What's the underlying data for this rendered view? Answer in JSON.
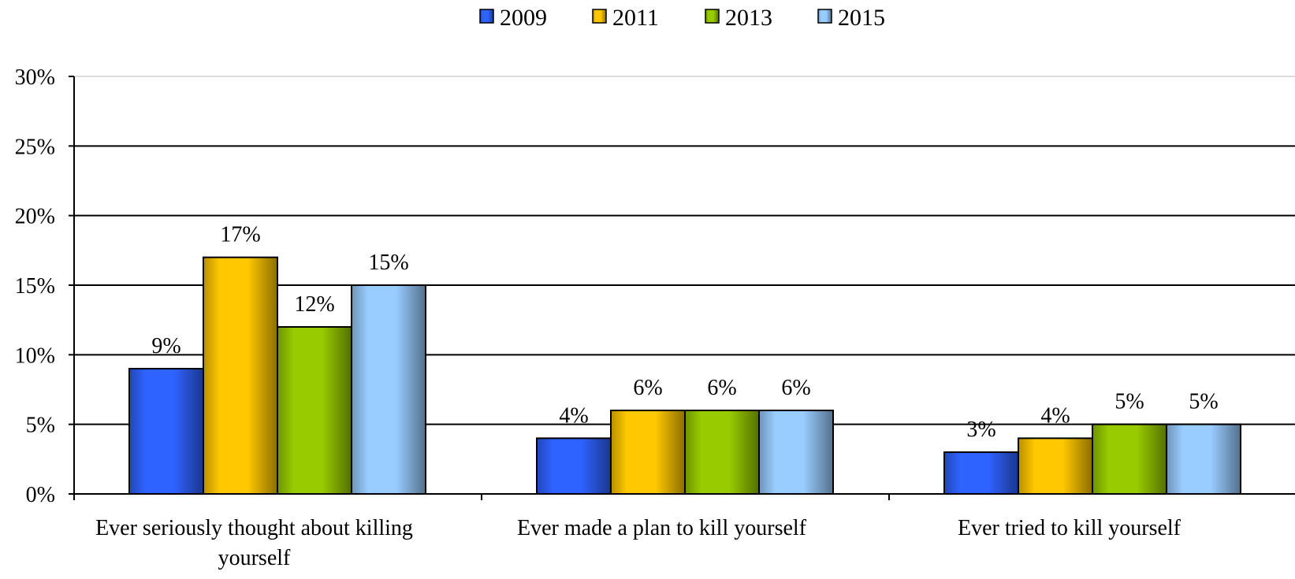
{
  "chart_data": {
    "type": "bar",
    "title": "",
    "xlabel": "",
    "ylabel": "",
    "categories": [
      [
        "Ever seriously thought about killing",
        "yourself"
      ],
      [
        "Ever made a plan to kill yourself"
      ],
      [
        "Ever tried to kill yourself"
      ]
    ],
    "series": [
      {
        "name": "2009",
        "values": [
          9,
          4,
          3
        ],
        "color": "#2f63ff",
        "labels": [
          "9%",
          "4%",
          "3%"
        ]
      },
      {
        "name": "2011",
        "values": [
          17,
          6,
          4
        ],
        "color": "#ffc800",
        "labels": [
          "17%",
          "6%",
          "4%"
        ]
      },
      {
        "name": "2013",
        "values": [
          12,
          6,
          5
        ],
        "color": "#98cc00",
        "labels": [
          "12%",
          "6%",
          "5%"
        ]
      },
      {
        "name": "2015",
        "values": [
          15,
          6,
          5
        ],
        "color": "#99ccff",
        "labels": [
          "15%",
          "6%",
          "5%"
        ]
      }
    ],
    "ylim": [
      0,
      30
    ],
    "yticks": [
      0,
      5,
      10,
      15,
      20,
      25,
      30
    ],
    "ytick_labels": [
      "0%",
      "5%",
      "10%",
      "15%",
      "20%",
      "25%",
      "30%"
    ],
    "grid": true,
    "legend_position": "top-center"
  }
}
